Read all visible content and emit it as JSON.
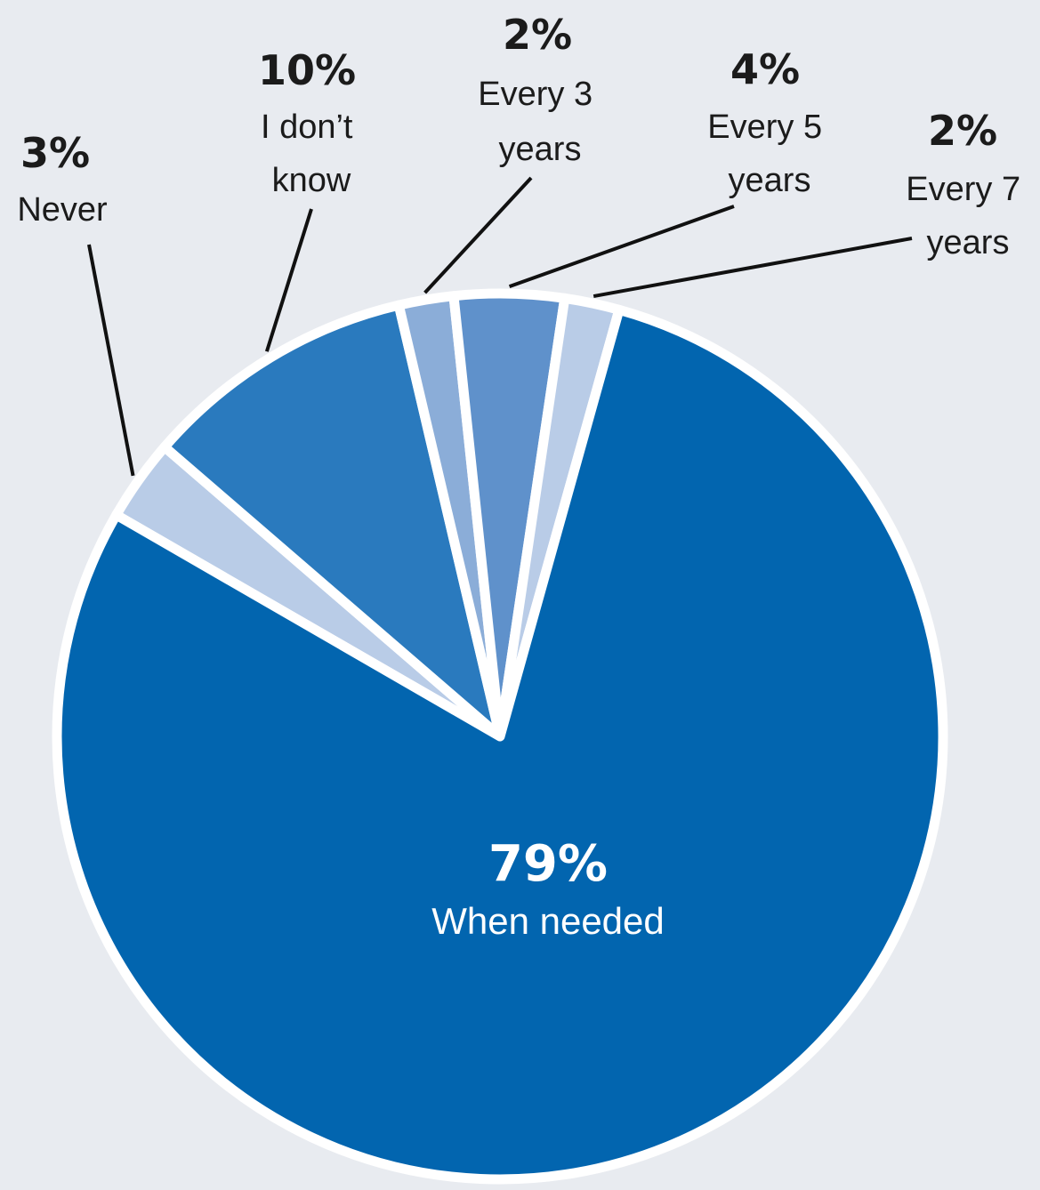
{
  "chart_data": {
    "type": "pie",
    "slices": [
      {
        "label": "When needed",
        "value": 79,
        "value_label": "79%",
        "color": "#0265af"
      },
      {
        "label": "Never",
        "value": 3,
        "value_label": "3%",
        "color": "#b9cce7"
      },
      {
        "label": "I don’t know",
        "value": 10,
        "value_label": "10%",
        "color": "#2a7abe"
      },
      {
        "label": "Every 3 years",
        "value": 2,
        "value_label": "2%",
        "color": "#8badd8"
      },
      {
        "label": "Every 5 years",
        "value": 4,
        "value_label": "4%",
        "color": "#5f91cb"
      },
      {
        "label": "Every 7 years",
        "value": 2,
        "value_label": "2%",
        "color": "#b9cce7"
      }
    ],
    "legend": "none",
    "background": "#e8ebf0"
  }
}
